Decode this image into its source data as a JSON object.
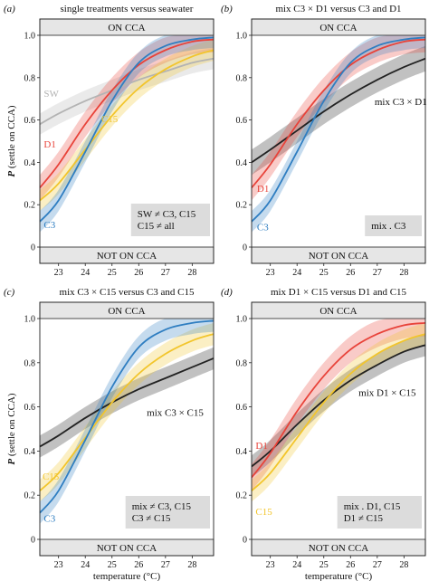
{
  "chart_data": [
    {
      "type": "line",
      "panel_letter": "(a)",
      "title": "single treatments versus seawater",
      "ylabel": "P (settle on CCA)",
      "xlabel": "",
      "band_top": "ON CCA",
      "band_bottom": "NOT ON CCA",
      "xlim": [
        22.3,
        28.8
      ],
      "ylim": [
        0,
        1
      ],
      "xticks": [
        23,
        24,
        25,
        26,
        27,
        28
      ],
      "yticks": [
        0,
        0.2,
        0.4,
        0.6,
        0.8,
        1.0
      ],
      "x": [
        22.3,
        23,
        24,
        25,
        26,
        27,
        28,
        28.8
      ],
      "series": [
        {
          "name": "SW",
          "color": "#b3b3b3",
          "values": [
            0.58,
            0.63,
            0.69,
            0.74,
            0.79,
            0.83,
            0.87,
            0.89
          ],
          "band": 0.05,
          "label_x": 22.45,
          "label_y": 0.71
        },
        {
          "name": "D1",
          "color": "#e8433a",
          "values": [
            0.28,
            0.39,
            0.58,
            0.74,
            0.86,
            0.93,
            0.97,
            0.98
          ],
          "band": 0.06,
          "label_x": 22.45,
          "label_y": 0.47
        },
        {
          "name": "C15",
          "color": "#f2c52c",
          "values": [
            0.22,
            0.3,
            0.46,
            0.62,
            0.75,
            0.84,
            0.9,
            0.93
          ],
          "band": 0.05,
          "label_x": 24.6,
          "label_y": 0.59
        },
        {
          "name": "C3",
          "color": "#2f7ec1",
          "values": [
            0.12,
            0.22,
            0.45,
            0.69,
            0.87,
            0.95,
            0.98,
            0.99
          ],
          "band": 0.05,
          "label_x": 22.45,
          "label_y": 0.09
        }
      ],
      "annotation": [
        "SW ≠ C3, C15",
        "C15 ≠ all"
      ]
    },
    {
      "type": "line",
      "panel_letter": "(b)",
      "title": "mix C3 × D1 versus  C3 and D1",
      "ylabel": "",
      "xlabel": "",
      "band_top": "ON CCA",
      "band_bottom": "NOT ON CCA",
      "xlim": [
        22.3,
        28.8
      ],
      "ylim": [
        0,
        1
      ],
      "xticks": [
        23,
        24,
        25,
        26,
        27,
        28
      ],
      "yticks": [
        0,
        0.2,
        0.4,
        0.6,
        0.8,
        1.0
      ],
      "x": [
        22.3,
        23,
        24,
        25,
        26,
        27,
        28,
        28.8
      ],
      "series": [
        {
          "name": "mix C3 × D1",
          "color": "#222222",
          "values": [
            0.4,
            0.46,
            0.55,
            0.64,
            0.72,
            0.79,
            0.85,
            0.89
          ],
          "band": 0.06,
          "label_x": 26.9,
          "label_y": 0.67
        },
        {
          "name": "D1",
          "color": "#e8433a",
          "values": [
            0.28,
            0.39,
            0.58,
            0.74,
            0.86,
            0.93,
            0.97,
            0.98
          ],
          "band": 0.06,
          "label_x": 22.5,
          "label_y": 0.26
        },
        {
          "name": "C3",
          "color": "#2f7ec1",
          "values": [
            0.12,
            0.22,
            0.45,
            0.69,
            0.87,
            0.95,
            0.98,
            0.99
          ],
          "band": 0.05,
          "label_x": 22.5,
          "label_y": 0.08
        }
      ],
      "annotation": [
        "mix . C3"
      ]
    },
    {
      "type": "line",
      "panel_letter": "(c)",
      "title": "mix C3 × C15 versus C3 and C15",
      "ylabel": "P (settle on CCA)",
      "xlabel": "temperature (°C)",
      "band_top": "ON CCA",
      "band_bottom": "NOT ON CCA",
      "xlim": [
        22.3,
        28.8
      ],
      "ylim": [
        0,
        1
      ],
      "xticks": [
        23,
        24,
        25,
        26,
        27,
        28
      ],
      "yticks": [
        0,
        0.2,
        0.4,
        0.6,
        0.8,
        1.0
      ],
      "x": [
        22.3,
        23,
        24,
        25,
        26,
        27,
        28,
        28.8
      ],
      "series": [
        {
          "name": "mix C3 × C15",
          "color": "#222222",
          "values": [
            0.42,
            0.47,
            0.55,
            0.62,
            0.68,
            0.73,
            0.78,
            0.82
          ],
          "band": 0.05,
          "label_x": 26.3,
          "label_y": 0.56
        },
        {
          "name": "C15",
          "color": "#f2c52c",
          "values": [
            0.22,
            0.3,
            0.46,
            0.62,
            0.75,
            0.84,
            0.9,
            0.93
          ],
          "band": 0.05,
          "label_x": 22.4,
          "label_y": 0.27
        },
        {
          "name": "C3",
          "color": "#2f7ec1",
          "values": [
            0.12,
            0.22,
            0.45,
            0.69,
            0.87,
            0.95,
            0.98,
            0.99
          ],
          "band": 0.05,
          "label_x": 22.45,
          "label_y": 0.08
        }
      ],
      "annotation": [
        "mix ≠ C3, C15",
        "C3 ≠ C15"
      ]
    },
    {
      "type": "line",
      "panel_letter": "(d)",
      "title": "mix D1 × C15 versus D1 and C15",
      "ylabel": "",
      "xlabel": "temperature (°C)",
      "band_top": "ON CCA",
      "band_bottom": "NOT ON CCA",
      "xlim": [
        22.3,
        28.8
      ],
      "ylim": [
        0,
        1
      ],
      "xticks": [
        23,
        24,
        25,
        26,
        27,
        28
      ],
      "yticks": [
        0,
        0.2,
        0.4,
        0.6,
        0.8,
        1.0
      ],
      "x": [
        22.3,
        23,
        24,
        25,
        26,
        27,
        28,
        28.8
      ],
      "series": [
        {
          "name": "mix D1 × C15",
          "color": "#222222",
          "values": [
            0.33,
            0.4,
            0.52,
            0.63,
            0.72,
            0.79,
            0.85,
            0.88
          ],
          "band": 0.05,
          "label_x": 26.3,
          "label_y": 0.65
        },
        {
          "name": "D1",
          "color": "#e8433a",
          "values": [
            0.28,
            0.39,
            0.58,
            0.74,
            0.86,
            0.93,
            0.97,
            0.98
          ],
          "band": 0.06,
          "label_x": 22.45,
          "label_y": 0.41
        },
        {
          "name": "C15",
          "color": "#f2c52c",
          "values": [
            0.22,
            0.3,
            0.46,
            0.62,
            0.75,
            0.84,
            0.9,
            0.93
          ],
          "band": 0.05,
          "label_x": 22.45,
          "label_y": 0.11
        }
      ],
      "annotation": [
        "mix . D1, C15",
        "D1 ≠ C15"
      ]
    }
  ]
}
